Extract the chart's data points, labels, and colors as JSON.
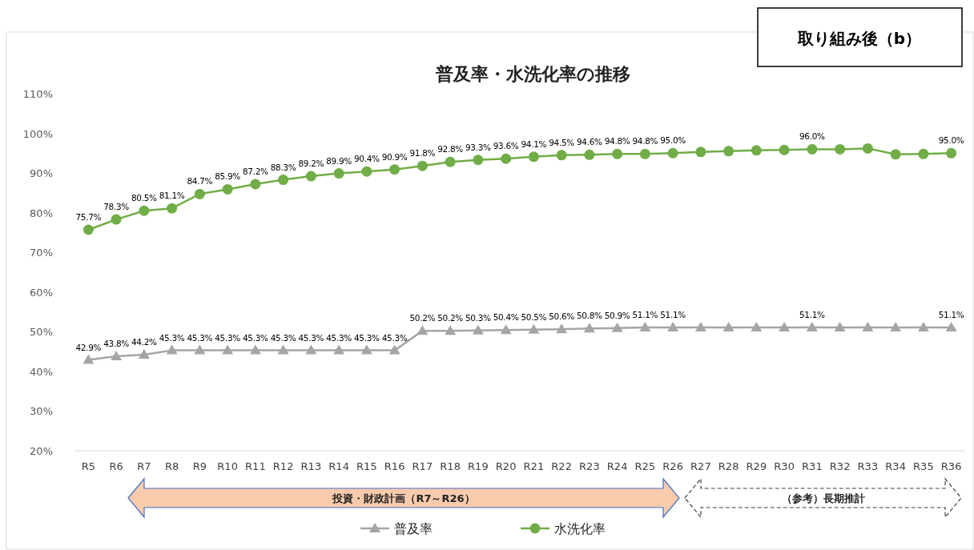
{
  "chart_data": {
    "type": "line",
    "title": "普及率・水洗化率の推移",
    "categories": [
      "R5",
      "R6",
      "R7",
      "R8",
      "R9",
      "R10",
      "R11",
      "R12",
      "R13",
      "R14",
      "R15",
      "R16",
      "R17",
      "R18",
      "R19",
      "R20",
      "R21",
      "R22",
      "R23",
      "R24",
      "R25",
      "R26",
      "R27",
      "R28",
      "R29",
      "R30",
      "R31",
      "R32",
      "R33",
      "R34",
      "R35",
      "R36"
    ],
    "series": [
      {
        "name": "普及率",
        "color": "#a5a5a5",
        "marker": "triangle",
        "values": [
          42.9,
          43.8,
          44.2,
          45.3,
          45.3,
          45.3,
          45.3,
          45.3,
          45.3,
          45.3,
          45.3,
          45.3,
          50.2,
          50.2,
          50.3,
          50.4,
          50.5,
          50.6,
          50.8,
          50.9,
          51.1,
          51.1,
          51.1,
          51.1,
          51.1,
          51.1,
          51.1,
          51.1,
          51.1,
          51.1,
          51.1,
          51.1
        ],
        "value_labels": [
          "42.9%",
          "43.8%",
          "44.2%",
          "45.3%",
          "45.3%",
          "45.3%",
          "45.3%",
          "45.3%",
          "45.3%",
          "45.3%",
          "45.3%",
          "45.3%",
          "50.2%",
          "50.2%",
          "50.3%",
          "50.4%",
          "50.5%",
          "50.6%",
          "50.8%",
          "50.9%",
          "51.1%",
          "51.1%",
          null,
          null,
          null,
          null,
          "51.1%",
          null,
          null,
          null,
          null,
          "51.1%"
        ]
      },
      {
        "name": "水洗化率",
        "color": "#70ad47",
        "marker": "circle",
        "values": [
          75.7,
          78.3,
          80.5,
          81.1,
          84.7,
          85.9,
          87.2,
          88.3,
          89.2,
          89.9,
          90.4,
          90.9,
          91.8,
          92.8,
          93.3,
          93.6,
          94.1,
          94.5,
          94.6,
          94.8,
          94.8,
          95.0,
          95.3,
          95.5,
          95.7,
          95.8,
          96.0,
          96.0,
          96.2,
          94.7,
          94.8,
          95.0
        ],
        "value_labels": [
          "75.7%",
          "78.3%",
          "80.5%",
          "81.1%",
          "84.7%",
          "85.9%",
          "87.2%",
          "88.3%",
          "89.2%",
          "89.9%",
          "90.4%",
          "90.9%",
          "91.8%",
          "92.8%",
          "93.3%",
          "93.6%",
          "94.1%",
          "94.5%",
          "94.6%",
          "94.8%",
          "94.8%",
          "95.0%",
          null,
          null,
          null,
          null,
          "96.0%",
          null,
          null,
          null,
          null,
          "95.0%"
        ]
      }
    ],
    "ylim": [
      20,
      110
    ],
    "yticks": [
      {
        "value": 20,
        "label": "20%"
      },
      {
        "value": 30,
        "label": "30%"
      },
      {
        "value": 40,
        "label": "40%"
      },
      {
        "value": 50,
        "label": "50%"
      },
      {
        "value": 60,
        "label": "60%"
      },
      {
        "value": 70,
        "label": "70%"
      },
      {
        "value": 80,
        "label": "80%"
      },
      {
        "value": 90,
        "label": "90%"
      },
      {
        "value": 100,
        "label": "100%"
      },
      {
        "value": 110,
        "label": "110%"
      }
    ],
    "line_style": "solid",
    "legend": "bottom",
    "annotations": [
      "取り組み後（b）",
      "投資・財政計画（R7～R26）",
      "（参考）長期推計"
    ]
  }
}
